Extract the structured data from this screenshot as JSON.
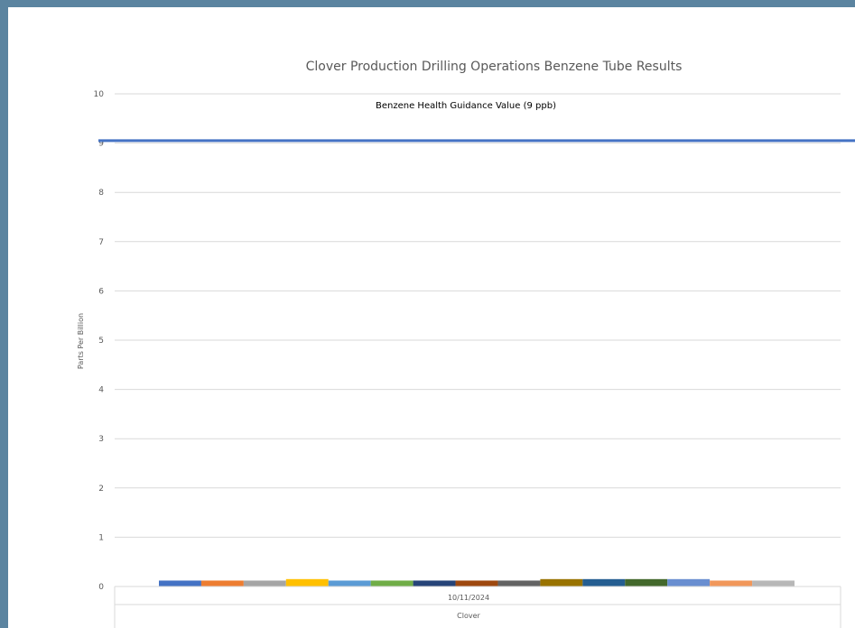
{
  "chart_data": {
    "type": "bar",
    "title": "Clover Production Drilling Operations Benzene Tube Results",
    "ylabel": "Parts Per Billion",
    "ylim": [
      0,
      10
    ],
    "yticks": [
      0,
      1,
      2,
      3,
      4,
      5,
      6,
      7,
      8,
      9,
      10
    ],
    "categories": [
      "10/11/2024"
    ],
    "group_label": "Clover",
    "grid": true,
    "reference_line": {
      "label": "Benzene Health Guidance Value (9 ppb)",
      "value": 9.05,
      "color": "#4472c4"
    },
    "series": [
      {
        "values": [
          0.12
        ],
        "color": "#4472c4"
      },
      {
        "values": [
          0.12
        ],
        "color": "#ed7d31"
      },
      {
        "values": [
          0.12
        ],
        "color": "#a5a5a5"
      },
      {
        "values": [
          0.15
        ],
        "color": "#ffc000"
      },
      {
        "values": [
          0.12
        ],
        "color": "#5b9bd5"
      },
      {
        "values": [
          0.12
        ],
        "color": "#70ad47"
      },
      {
        "values": [
          0.12
        ],
        "color": "#264478"
      },
      {
        "values": [
          0.12
        ],
        "color": "#9e480e"
      },
      {
        "values": [
          0.12
        ],
        "color": "#636363"
      },
      {
        "values": [
          0.15
        ],
        "color": "#997300"
      },
      {
        "values": [
          0.15
        ],
        "color": "#255e91"
      },
      {
        "values": [
          0.15
        ],
        "color": "#43682b"
      },
      {
        "values": [
          0.15
        ],
        "color": "#698ed0"
      },
      {
        "values": [
          0.12
        ],
        "color": "#f1975a"
      },
      {
        "values": [
          0.12
        ],
        "color": "#b7b7b7"
      }
    ]
  }
}
